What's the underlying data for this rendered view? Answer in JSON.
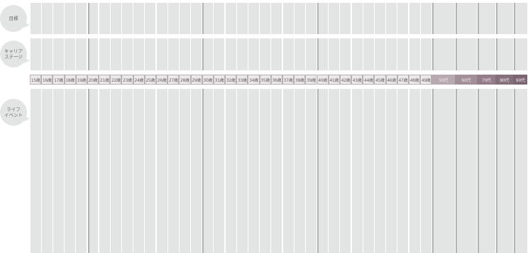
{
  "labels": {
    "goal": "目標",
    "career": "キャリア\nステージ",
    "life": "ライフ\nイベント"
  },
  "ages": [
    "15歳",
    "16歳",
    "17歳",
    "18歳",
    "19歳",
    "20歳",
    "21歳",
    "22歳",
    "23歳",
    "24歳",
    "25歳",
    "26歳",
    "27歳",
    "28歳",
    "29歳",
    "30歳",
    "31歳",
    "32歳",
    "33歳",
    "34歳",
    "35歳",
    "36歳",
    "37歳",
    "38歳",
    "39歳",
    "40歳",
    "41歳",
    "42歳",
    "43歳",
    "44歳",
    "45歳",
    "46歳",
    "47歳",
    "48歳",
    "49歳"
  ],
  "decades": [
    "50代",
    "60代",
    "70代",
    "80代",
    "90代"
  ],
  "colors": {
    "column": "#e3e4e4",
    "major_line": "#b1b2b2",
    "strip_light": "#ebe9ea",
    "strip_dark": "#7a6570"
  }
}
